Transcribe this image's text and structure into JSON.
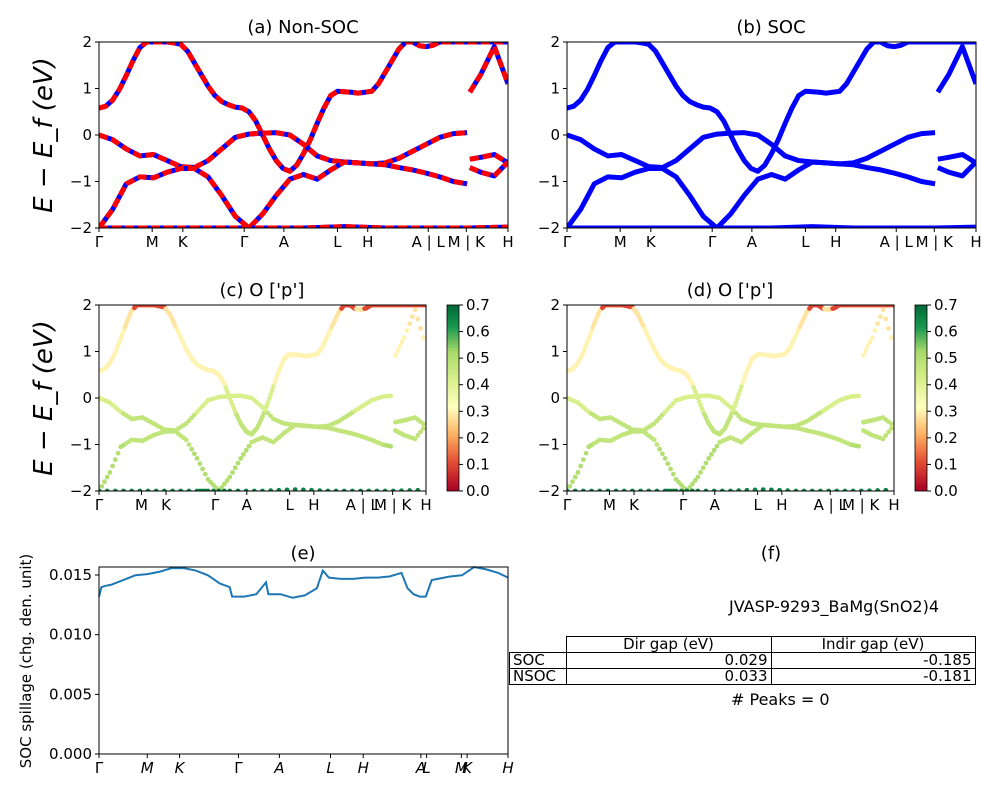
{
  "chart_data": [
    {
      "type": "line",
      "title": "(a) Non-SOC",
      "ylabel": "E − E_f (eV)",
      "ylim": [
        -2,
        2
      ],
      "yticks": [
        "2",
        "1",
        "0",
        "−1",
        "−2"
      ],
      "xticks": [
        "Γ",
        "M",
        "K",
        "Γ",
        "A",
        "L",
        "H",
        "A | L",
        "M | K",
        "H"
      ],
      "series": [
        {
          "x": [
            0,
            0.05,
            0.1,
            0.15,
            0.2,
            0.25,
            0.3,
            0.35,
            0.4,
            0.45,
            0.5,
            0.55,
            0.6,
            0.65,
            0.7,
            0.75,
            0.8,
            0.85,
            0.9,
            0.95,
            1.0,
            1.05,
            1.1,
            1.15,
            1.2,
            1.25,
            1.3,
            1.35,
            1.4,
            1.45,
            1.5,
            1.55,
            1.6,
            1.65,
            1.7,
            1.75,
            1.8,
            1.85,
            1.9,
            1.95,
            2.0,
            2.05,
            2.1,
            2.15,
            2.2,
            2.25,
            2.3,
            2.35,
            2.4,
            2.45,
            2.5,
            2.55,
            2.6,
            2.65,
            2.7,
            2.75,
            2.8,
            2.85,
            2.9,
            2.95,
            3.0
          ],
          "y": [
            0.58,
            0.62,
            0.75,
            0.98,
            1.28,
            1.6,
            1.88,
            2.0,
            2.0,
            2.0,
            2.0,
            1.98,
            1.95,
            1.8,
            1.55,
            1.3,
            1.05,
            0.85,
            0.72,
            0.65,
            0.6,
            0.58,
            0.5,
            0.3,
            0.0,
            -0.3,
            -0.55,
            -0.72,
            -0.78,
            -0.65,
            -0.4,
            -0.1,
            0.25,
            0.58,
            0.85,
            0.94,
            0.93,
            0.92,
            0.9,
            0.92,
            0.94,
            1.1,
            1.35,
            1.6,
            1.85,
            2.0,
            2.0,
            1.92,
            1.9,
            1.93,
            2.0,
            2.0,
            2.0,
            2.0,
            2.0,
            2.0,
            2.0,
            2.0,
            2.0,
            2.0,
            2.0
          ]
        },
        {
          "x": [
            0,
            0.1,
            0.2,
            0.3,
            0.4,
            0.5,
            0.6,
            0.7,
            0.8,
            0.9,
            1.0,
            1.1,
            1.2,
            1.3,
            1.4,
            1.5,
            1.6,
            1.7,
            1.8,
            1.9,
            2.0,
            2.1,
            2.2,
            2.3,
            2.4,
            2.5,
            2.6,
            2.7
          ],
          "y": [
            0.0,
            -0.1,
            -0.3,
            -0.45,
            -0.42,
            -0.55,
            -0.68,
            -0.7,
            -0.55,
            -0.3,
            -0.05,
            0.02,
            0.04,
            0.05,
            0.0,
            -0.2,
            -0.45,
            -0.55,
            -0.58,
            -0.6,
            -0.62,
            -0.6,
            -0.5,
            -0.35,
            -0.2,
            -0.05,
            0.03,
            0.05
          ]
        },
        {
          "x": [
            0,
            0.1,
            0.2,
            0.3,
            0.4,
            0.5,
            0.6,
            0.7,
            0.8,
            0.9,
            1.0,
            1.1,
            1.2,
            1.3,
            1.4,
            1.5,
            1.6,
            1.7,
            1.8,
            1.9,
            2.0,
            2.1,
            2.2,
            2.3,
            2.4,
            2.5,
            2.6,
            2.7
          ],
          "y": [
            -2.0,
            -1.6,
            -1.05,
            -0.9,
            -0.92,
            -0.8,
            -0.72,
            -0.72,
            -0.9,
            -1.3,
            -1.75,
            -2.0,
            -1.7,
            -1.3,
            -0.95,
            -0.85,
            -0.95,
            -0.75,
            -0.58,
            -0.6,
            -0.62,
            -0.64,
            -0.7,
            -0.75,
            -0.82,
            -0.9,
            -1.0,
            -1.05
          ]
        },
        {
          "x": [
            0,
            0.3,
            0.6,
            0.9,
            1.0,
            1.2,
            1.5,
            1.8,
            2.1,
            2.4,
            2.7,
            3.0
          ],
          "y": [
            -2.0,
            -2.0,
            -2.0,
            -2.0,
            -2.0,
            -2.0,
            -2.0,
            -1.97,
            -2.0,
            -2.0,
            -2.0,
            -1.98
          ]
        },
        {
          "x": [
            2.72,
            2.8,
            2.9,
            3.0
          ],
          "y": [
            0.92,
            1.3,
            1.9,
            1.1
          ]
        },
        {
          "x": [
            2.72,
            2.8,
            2.9,
            3.0
          ],
          "y": [
            -0.52,
            -0.48,
            -0.42,
            -0.6
          ]
        },
        {
          "x": [
            2.72,
            2.8,
            2.9,
            3.0
          ],
          "y": [
            -0.7,
            -0.8,
            -0.88,
            -0.58
          ]
        }
      ]
    },
    {
      "type": "line",
      "title": "(b) SOC",
      "ylim": [
        -2,
        2
      ],
      "yticks": [
        "2",
        "1",
        "0",
        "−1",
        "−2"
      ],
      "xticks": [
        "Γ",
        "M",
        "K",
        "Γ",
        "A",
        "L",
        "H",
        "A | L",
        "M | K",
        "H"
      ]
    },
    {
      "type": "scatter",
      "title": "(c)  O ['p']",
      "ylabel": "E − E_f (eV)",
      "ylim": [
        -2,
        2
      ],
      "yticks": [
        "2",
        "1",
        "0",
        "−1",
        "−2"
      ],
      "xticks": [
        "Γ",
        "M",
        "K",
        "Γ",
        "A",
        "L",
        "H",
        "A | L",
        "M | K",
        "H"
      ],
      "colorbar": {
        "min": 0.0,
        "max": 0.7,
        "ticks": [
          "0.7",
          "0.6",
          "0.5",
          "0.4",
          "0.3",
          "0.2",
          "0.1",
          "0.0"
        ],
        "colormap": "RdYlGn"
      }
    },
    {
      "type": "scatter",
      "title": "(d) O ['p']",
      "ylim": [
        -2,
        2
      ],
      "yticks": [
        "2",
        "1",
        "0",
        "−1",
        "−2"
      ],
      "xticks": [
        "Γ",
        "M",
        "K",
        "Γ",
        "A",
        "L",
        "H",
        "A | L",
        "M | K",
        "H"
      ],
      "colorbar": {
        "min": 0.0,
        "max": 0.7,
        "ticks": [
          "0.7",
          "0.6",
          "0.5",
          "0.4",
          "0.3",
          "0.2",
          "0.1",
          "0.0"
        ],
        "colormap": "RdYlGn"
      }
    },
    {
      "type": "line",
      "title": "(e)",
      "ylabel": "SOC spillage (chg. den. unit)",
      "ylim": [
        0,
        0.0158
      ],
      "yticks": [
        "0.015",
        "0.010",
        "0.005",
        "0.000"
      ],
      "xticks": [
        "Γ",
        "M",
        "K",
        "Γ",
        "A",
        "L",
        "H",
        "A",
        "L",
        "M",
        "K",
        "H"
      ],
      "x": [
        0,
        0.02,
        0.05,
        0.1,
        0.2,
        0.3,
        0.4,
        0.5,
        0.6,
        0.7,
        0.8,
        0.9,
        1.0,
        1.08,
        1.1,
        1.2,
        1.3,
        1.38,
        1.4,
        1.5,
        1.6,
        1.7,
        1.75,
        1.8,
        1.85,
        1.9,
        2.0,
        2.1,
        2.2,
        2.3,
        2.4,
        2.5,
        2.55,
        2.6,
        2.65,
        2.7,
        2.75,
        2.8,
        2.9,
        3.0,
        3.1,
        3.2,
        3.3,
        3.38
      ],
      "values": [
        0.0133,
        0.0141,
        0.0142,
        0.0143,
        0.0147,
        0.0151,
        0.0152,
        0.0154,
        0.0157,
        0.0157,
        0.0155,
        0.0151,
        0.0144,
        0.0141,
        0.0133,
        0.0133,
        0.0135,
        0.0145,
        0.0135,
        0.0135,
        0.0132,
        0.0134,
        0.0137,
        0.014,
        0.0155,
        0.0149,
        0.0148,
        0.0148,
        0.0149,
        0.0149,
        0.015,
        0.0153,
        0.014,
        0.0135,
        0.0133,
        0.0133,
        0.0147,
        0.0148,
        0.015,
        0.0151,
        0.0158,
        0.0156,
        0.0153,
        0.0149
      ]
    },
    {
      "type": "table",
      "title": "(f)",
      "caption": "JVASP-9293_BaMg(SnO2)4",
      "columns": [
        "Dir gap (eV)",
        "Indir gap (eV)"
      ],
      "rows": [
        {
          "label": "SOC",
          "values": [
            "0.029",
            "-0.185"
          ]
        },
        {
          "label": "NSOC",
          "values": [
            "0.033",
            "-0.181"
          ]
        }
      ],
      "footer": "# Peaks = 0"
    }
  ]
}
